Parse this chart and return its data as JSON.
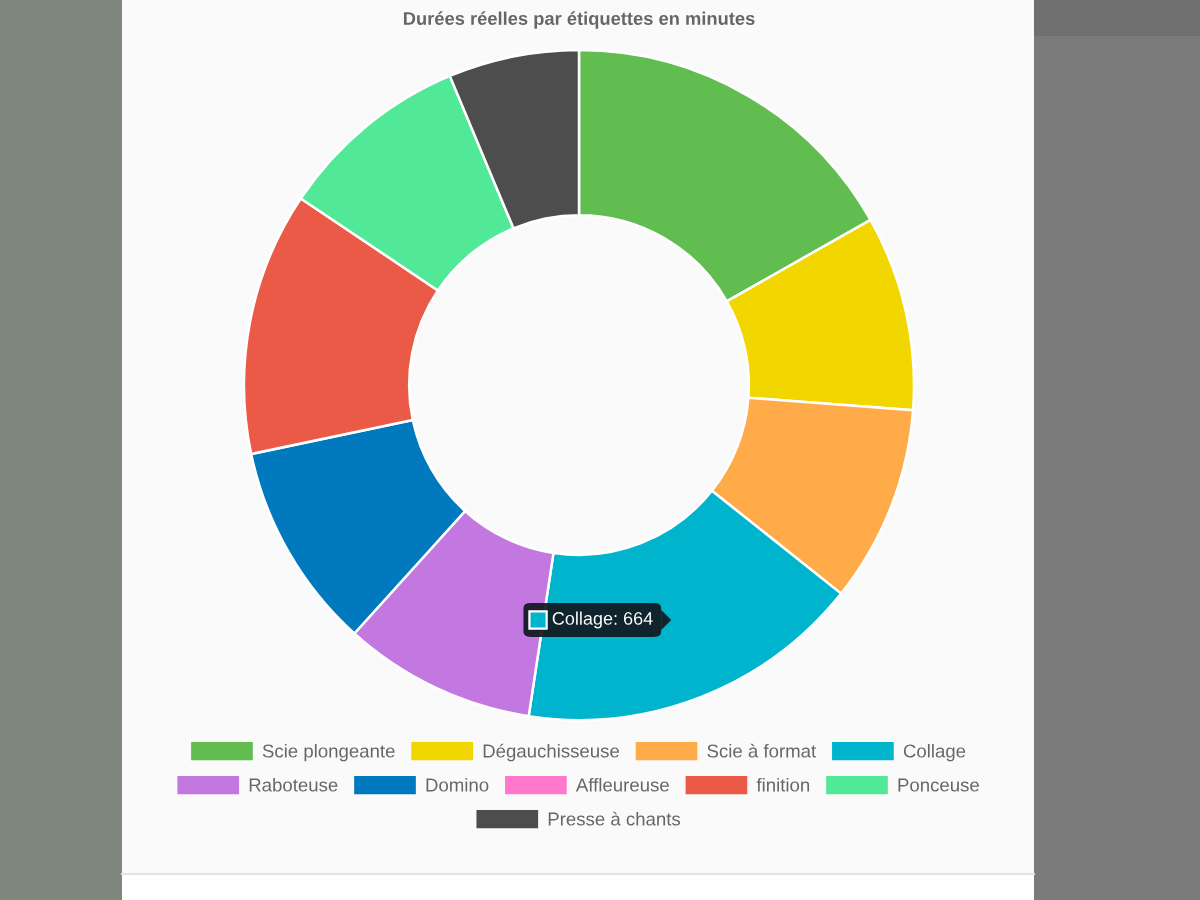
{
  "chart_data": {
    "type": "donut",
    "title": "Durées réelles par étiquettes en minutes",
    "categories": [
      "Scie plongeante",
      "Dégauchisseuse",
      "Scie à format",
      "Collage",
      "Raboteuse",
      "Domino",
      "Affleureuse",
      "finition",
      "Ponceuse",
      "Presse à chants"
    ],
    "values": [
      16.8,
      9.4,
      9.5,
      16.7,
      9.3,
      10.0,
      0,
      12.7,
      9.3,
      6.3
    ],
    "colors": [
      "#61bd4f",
      "#f2d600",
      "#ffab4a",
      "#00b4cd",
      "#c377e0",
      "#0079bf",
      "#ff78cb",
      "#eb5a46",
      "#51e898",
      "#4d4d4d"
    ],
    "legend": "bottom",
    "annotations": [
      {
        "text": "Collage: 664",
        "x": "Collage"
      }
    ]
  }
}
